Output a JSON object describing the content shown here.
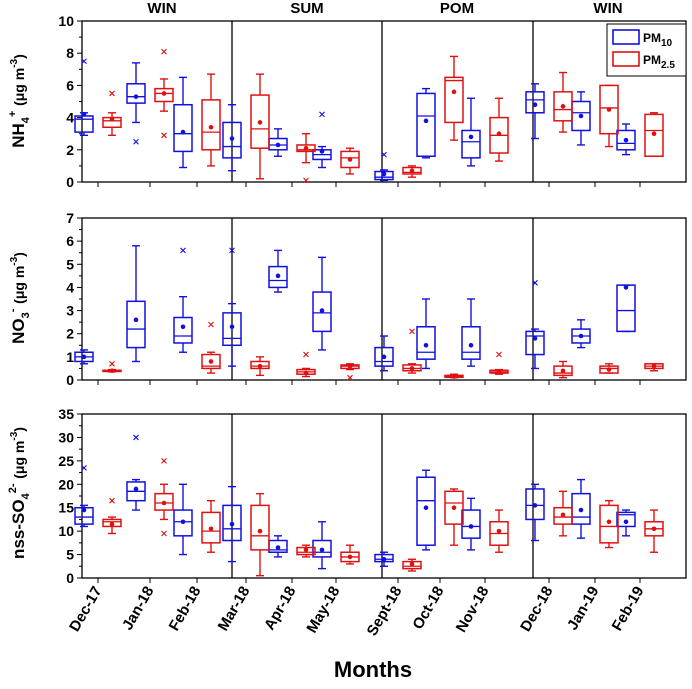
{
  "chart_data": [
    {
      "type": "box",
      "panel": "nh4",
      "ylabel": {
        "main": "NH",
        "sub": "4",
        "sup": "+",
        "unit": "(μg m",
        "unit_sup": "-3",
        "close": ")"
      },
      "ylim": [
        0,
        10
      ],
      "yticks": [
        "0",
        "2",
        "4",
        "6",
        "8",
        "10"
      ],
      "series": {
        "PM10": [
          {
            "category": "Dec-17",
            "min": 2.9,
            "q1": 3.1,
            "median": 3.9,
            "q3": 4.1,
            "max": 4.3,
            "mean": 4.2,
            "outliers": [
              7.5
            ]
          },
          {
            "category": "Jan-18",
            "min": 3.7,
            "q1": 4.9,
            "median": 5.3,
            "q3": 6.1,
            "max": 7.4,
            "mean": 5.3,
            "outliers": [
              2.5
            ]
          },
          {
            "category": "Feb-18",
            "min": 0.9,
            "q1": 1.9,
            "median": 3.0,
            "q3": 4.8,
            "max": 6.5,
            "mean": 3.1,
            "outliers": []
          },
          {
            "category": "Mar-18",
            "min": 0.7,
            "q1": 1.5,
            "median": 2.2,
            "q3": 3.7,
            "max": 4.8,
            "mean": 2.7,
            "outliers": []
          },
          {
            "category": "Apr-18",
            "min": 1.6,
            "q1": 2.0,
            "median": 2.3,
            "q3": 2.7,
            "max": 3.3,
            "mean": 2.3,
            "outliers": []
          },
          {
            "category": "May-18",
            "min": 0.9,
            "q1": 1.4,
            "median": 1.7,
            "q3": 2.0,
            "max": 2.2,
            "mean": 1.9,
            "outliers": [
              4.2
            ]
          },
          {
            "category": "Sept-18",
            "min": 0.1,
            "q1": 0.15,
            "median": 0.3,
            "q3": 0.65,
            "max": 0.75,
            "mean": 0.5,
            "outliers": [
              1.7
            ]
          },
          {
            "category": "Oct-18",
            "min": 1.5,
            "q1": 1.6,
            "median": 4.1,
            "q3": 5.5,
            "max": 5.8,
            "mean": 3.8,
            "outliers": []
          },
          {
            "category": "Nov-18",
            "min": 1.0,
            "q1": 1.5,
            "median": 2.5,
            "q3": 3.2,
            "max": 5.2,
            "mean": 2.8,
            "outliers": []
          },
          {
            "category": "Dec-18",
            "min": 2.7,
            "q1": 4.3,
            "median": 5.1,
            "q3": 5.6,
            "max": 6.1,
            "mean": 4.8,
            "outliers": []
          },
          {
            "category": "Jan-19",
            "min": 2.3,
            "q1": 3.2,
            "median": 4.3,
            "q3": 5.0,
            "max": 5.6,
            "mean": 4.1,
            "outliers": []
          },
          {
            "category": "Feb-19",
            "min": 1.7,
            "q1": 2.0,
            "median": 2.4,
            "q3": 3.2,
            "max": 3.6,
            "mean": 2.6,
            "outliers": []
          }
        ],
        "PM2.5": [
          {
            "category": "Dec-17",
            "min": 2.9,
            "q1": 3.4,
            "median": 3.8,
            "q3": 4.0,
            "max": 4.3,
            "mean": 3.9,
            "outliers": [
              5.5
            ]
          },
          {
            "category": "Jan-18",
            "min": 4.4,
            "q1": 5.0,
            "median": 5.5,
            "q3": 5.8,
            "max": 6.4,
            "mean": 5.5,
            "outliers": [
              8.1,
              2.9
            ]
          },
          {
            "category": "Feb-18",
            "min": 1.0,
            "q1": 2.0,
            "median": 3.1,
            "q3": 5.1,
            "max": 6.7,
            "mean": 3.4,
            "outliers": []
          },
          {
            "category": "Mar-18",
            "min": 0.2,
            "q1": 2.1,
            "median": 3.3,
            "q3": 5.4,
            "max": 6.7,
            "mean": 3.7,
            "outliers": []
          },
          {
            "category": "Apr-18",
            "min": 1.2,
            "q1": 1.9,
            "median": 2.0,
            "q3": 2.3,
            "max": 3.0,
            "mean": 2.1,
            "outliers": [
              0.1
            ]
          },
          {
            "category": "May-18",
            "min": 0.5,
            "q1": 0.9,
            "median": 1.5,
            "q3": 1.9,
            "max": 2.1,
            "mean": 1.4,
            "outliers": []
          },
          {
            "category": "Sept-18",
            "min": 0.3,
            "q1": 0.5,
            "median": 0.6,
            "q3": 0.9,
            "max": 1.0,
            "mean": 0.7,
            "outliers": []
          },
          {
            "category": "Oct-18",
            "min": 2.6,
            "q1": 3.7,
            "median": 6.3,
            "q3": 6.5,
            "max": 7.8,
            "mean": 5.6,
            "outliers": []
          },
          {
            "category": "Nov-18",
            "min": 1.3,
            "q1": 1.8,
            "median": 2.9,
            "q3": 4.0,
            "max": 5.2,
            "mean": 3.0,
            "outliers": []
          },
          {
            "category": "Dec-18",
            "min": 3.1,
            "q1": 3.8,
            "median": 4.5,
            "q3": 5.6,
            "max": 6.8,
            "mean": 4.7,
            "outliers": []
          },
          {
            "category": "Jan-19",
            "min": 2.2,
            "q1": 3.0,
            "median": 4.6,
            "q3": 6.0,
            "max": 6.0,
            "mean": 4.5,
            "outliers": []
          },
          {
            "category": "Feb-19",
            "min": 1.6,
            "q1": 1.6,
            "median": 3.2,
            "q3": 4.2,
            "max": 4.3,
            "mean": 3.0,
            "outliers": []
          }
        ]
      }
    },
    {
      "type": "box",
      "panel": "no3",
      "ylabel": {
        "main": "NO",
        "sub": "3",
        "sup": "-",
        "unit": "(μg m",
        "unit_sup": "-3",
        "close": ")"
      },
      "ylim": [
        0,
        7
      ],
      "yticks": [
        "0",
        "1",
        "2",
        "3",
        "4",
        "5",
        "6",
        "7"
      ],
      "series": {
        "PM10": [
          {
            "category": "Dec-17",
            "min": 0.7,
            "q1": 0.8,
            "median": 1.0,
            "q3": 1.2,
            "max": 1.3,
            "mean": 1.0,
            "outliers": []
          },
          {
            "category": "Jan-18",
            "min": 0.8,
            "q1": 1.4,
            "median": 2.2,
            "q3": 3.4,
            "max": 5.8,
            "mean": 2.6,
            "outliers": []
          },
          {
            "category": "Feb-18",
            "min": 1.2,
            "q1": 1.6,
            "median": 1.9,
            "q3": 2.7,
            "max": 3.6,
            "mean": 2.3,
            "outliers": [
              5.6
            ]
          },
          {
            "category": "Mar-18",
            "min": 0.6,
            "q1": 1.5,
            "median": 1.8,
            "q3": 2.9,
            "max": 3.3,
            "mean": 2.3,
            "outliers": [
              5.6
            ]
          },
          {
            "category": "Apr-18",
            "min": 3.8,
            "q1": 4.0,
            "median": 4.3,
            "q3": 4.9,
            "max": 5.6,
            "mean": 4.5,
            "outliers": []
          },
          {
            "category": "May-18",
            "min": 1.3,
            "q1": 2.1,
            "median": 2.9,
            "q3": 3.8,
            "max": 5.3,
            "mean": 3.0,
            "outliers": []
          },
          {
            "category": "Sept-18",
            "min": 0.4,
            "q1": 0.6,
            "median": 0.8,
            "q3": 1.4,
            "max": 1.9,
            "mean": 1.0,
            "outliers": []
          },
          {
            "category": "Oct-18",
            "min": 0.5,
            "q1": 0.9,
            "median": 1.2,
            "q3": 2.3,
            "max": 3.5,
            "mean": 1.5,
            "outliers": []
          },
          {
            "category": "Nov-18",
            "min": 0.6,
            "q1": 0.9,
            "median": 1.2,
            "q3": 2.3,
            "max": 3.5,
            "mean": 1.5,
            "outliers": []
          },
          {
            "category": "Dec-18",
            "min": 0.5,
            "q1": 1.1,
            "median": 1.9,
            "q3": 2.1,
            "max": 2.2,
            "mean": 1.8,
            "outliers": [
              4.2
            ]
          },
          {
            "category": "Jan-19",
            "min": 1.4,
            "q1": 1.6,
            "median": 1.9,
            "q3": 2.2,
            "max": 2.6,
            "mean": 1.9,
            "outliers": []
          },
          {
            "category": "Feb-19",
            "min": 2.1,
            "q1": 2.1,
            "median": 3.0,
            "q3": 4.1,
            "max": 4.1,
            "mean": 4.0,
            "outliers": []
          }
        ],
        "PM2.5": [
          {
            "category": "Dec-17",
            "min": 0.35,
            "q1": 0.37,
            "median": 0.4,
            "q3": 0.42,
            "max": 0.45,
            "mean": 0.4,
            "outliers": [
              0.7
            ]
          },
          {
            "category": "Feb-18",
            "min": 0.3,
            "q1": 0.5,
            "median": 0.6,
            "q3": 1.1,
            "max": 1.2,
            "mean": 0.8,
            "outliers": [
              2.4
            ]
          },
          {
            "category": "Mar-18",
            "min": 0.2,
            "q1": 0.5,
            "median": 0.6,
            "q3": 0.8,
            "max": 1.0,
            "mean": 0.6,
            "outliers": []
          },
          {
            "category": "Apr-18",
            "min": 0.15,
            "q1": 0.25,
            "median": 0.35,
            "q3": 0.45,
            "max": 0.5,
            "mean": 0.3,
            "outliers": [
              1.1
            ]
          },
          {
            "category": "May-18",
            "min": 0.45,
            "q1": 0.5,
            "median": 0.6,
            "q3": 0.65,
            "max": 0.7,
            "mean": 0.6,
            "outliers": [
              0.1
            ]
          },
          {
            "category": "Sept-18",
            "min": 0.3,
            "q1": 0.4,
            "median": 0.5,
            "q3": 0.65,
            "max": 0.7,
            "mean": 0.5,
            "outliers": [
              2.1
            ]
          },
          {
            "category": "Oct-18",
            "min": 0.1,
            "q1": 0.12,
            "median": 0.15,
            "q3": 0.2,
            "max": 0.25,
            "mean": 0.15,
            "outliers": []
          },
          {
            "category": "Nov-18",
            "min": 0.25,
            "q1": 0.3,
            "median": 0.35,
            "q3": 0.42,
            "max": 0.45,
            "mean": 0.35,
            "outliers": [
              1.1
            ]
          },
          {
            "category": "Dec-18",
            "min": 0.1,
            "q1": 0.2,
            "median": 0.3,
            "q3": 0.6,
            "max": 0.8,
            "mean": 0.4,
            "outliers": []
          },
          {
            "category": "Jan-19",
            "min": 0.3,
            "q1": 0.3,
            "median": 0.5,
            "q3": 0.6,
            "max": 0.7,
            "mean": 0.45,
            "outliers": []
          },
          {
            "category": "Feb-19",
            "min": 0.4,
            "q1": 0.5,
            "median": 0.6,
            "q3": 0.7,
            "max": 0.7,
            "mean": 0.6,
            "outliers": []
          }
        ]
      }
    },
    {
      "type": "box",
      "panel": "so4",
      "ylabel": {
        "main": "nss-SO",
        "sub": "4",
        "sup": "2-",
        "unit": "(μg m",
        "unit_sup": "-3",
        "close": ")"
      },
      "ylim": [
        0,
        35
      ],
      "yticks": [
        "0",
        "5",
        "10",
        "15",
        "20",
        "25",
        "30",
        "35"
      ],
      "series": {
        "PM10": [
          {
            "category": "Dec-17",
            "min": 11.0,
            "q1": 11.5,
            "median": 13.0,
            "q3": 15.0,
            "max": 15.5,
            "mean": 14.5,
            "outliers": [
              23.5
            ]
          },
          {
            "category": "Jan-18",
            "min": 14.5,
            "q1": 16.5,
            "median": 18.5,
            "q3": 20.5,
            "max": 21.0,
            "mean": 19.0,
            "outliers": [
              30.0
            ]
          },
          {
            "category": "Feb-18",
            "min": 5.0,
            "q1": 9.0,
            "median": 12.0,
            "q3": 14.5,
            "max": 20.0,
            "mean": 12.0,
            "outliers": []
          },
          {
            "category": "Mar-18",
            "min": 3.5,
            "q1": 8.0,
            "median": 10.5,
            "q3": 15.5,
            "max": 19.5,
            "mean": 11.5,
            "outliers": []
          },
          {
            "category": "Apr-18",
            "min": 4.5,
            "q1": 5.5,
            "median": 6.0,
            "q3": 8.0,
            "max": 9.0,
            "mean": 6.5,
            "outliers": []
          },
          {
            "category": "May-18",
            "min": 2.0,
            "q1": 4.5,
            "median": 5.5,
            "q3": 8.0,
            "max": 12.0,
            "mean": 6.0,
            "outliers": []
          },
          {
            "category": "Sept-18",
            "min": 2.5,
            "q1": 3.5,
            "median": 4.0,
            "q3": 5.0,
            "max": 5.5,
            "mean": 4.0,
            "outliers": []
          },
          {
            "category": "Oct-18",
            "min": 6.0,
            "q1": 7.0,
            "median": 16.5,
            "q3": 21.5,
            "max": 23.0,
            "mean": 15.0,
            "outliers": []
          },
          {
            "category": "Nov-18",
            "min": 6.0,
            "q1": 8.5,
            "median": 11.0,
            "q3": 14.5,
            "max": 17.0,
            "mean": 11.0,
            "outliers": []
          },
          {
            "category": "Dec-18",
            "min": 8.0,
            "q1": 12.5,
            "median": 15.5,
            "q3": 19.0,
            "max": 20.0,
            "mean": 15.5,
            "outliers": []
          },
          {
            "category": "Jan-19",
            "min": 8.5,
            "q1": 11.5,
            "median": 13.0,
            "q3": 18.0,
            "max": 21.0,
            "mean": 14.5,
            "outliers": []
          },
          {
            "category": "Feb-19",
            "min": 9.0,
            "q1": 11.0,
            "median": 13.5,
            "q3": 14.0,
            "max": 14.5,
            "mean": 12.0,
            "outliers": []
          }
        ],
        "PM2.5": [
          {
            "category": "Dec-17",
            "min": 9.5,
            "q1": 11.0,
            "median": 12.0,
            "q3": 12.5,
            "max": 13.0,
            "mean": 11.5,
            "outliers": [
              16.5
            ]
          },
          {
            "category": "Jan-18",
            "min": 12.5,
            "q1": 14.5,
            "median": 16.0,
            "q3": 18.0,
            "max": 20.0,
            "mean": 16.0,
            "outliers": [
              25.0,
              9.5
            ]
          },
          {
            "category": "Feb-18",
            "min": 5.5,
            "q1": 7.5,
            "median": 10.0,
            "q3": 14.0,
            "max": 16.5,
            "mean": 10.5,
            "outliers": []
          },
          {
            "category": "Mar-18",
            "min": 0.5,
            "q1": 6.0,
            "median": 9.0,
            "q3": 15.5,
            "max": 18.0,
            "mean": 10.0,
            "outliers": []
          },
          {
            "category": "Apr-18",
            "min": 4.5,
            "q1": 5.0,
            "median": 5.5,
            "q3": 6.5,
            "max": 7.0,
            "mean": 6.0,
            "outliers": []
          },
          {
            "category": "May-18",
            "min": 3.0,
            "q1": 3.5,
            "median": 4.5,
            "q3": 5.5,
            "max": 7.0,
            "mean": 4.5,
            "outliers": []
          },
          {
            "category": "Sept-18",
            "min": 1.5,
            "q1": 2.0,
            "median": 2.5,
            "q3": 3.5,
            "max": 4.0,
            "mean": 3.0,
            "outliers": []
          },
          {
            "category": "Oct-18",
            "min": 7.0,
            "q1": 11.5,
            "median": 16.0,
            "q3": 18.5,
            "max": 19.0,
            "mean": 15.0,
            "outliers": []
          },
          {
            "category": "Nov-18",
            "min": 5.5,
            "q1": 7.0,
            "median": 9.5,
            "q3": 12.0,
            "max": 14.5,
            "mean": 10.0,
            "outliers": []
          },
          {
            "category": "Dec-18",
            "min": 9.0,
            "q1": 11.5,
            "median": 13.0,
            "q3": 15.0,
            "max": 18.5,
            "mean": 13.5,
            "outliers": []
          },
          {
            "category": "Jan-19",
            "min": 6.5,
            "q1": 7.5,
            "median": 11.0,
            "q3": 15.5,
            "max": 16.5,
            "mean": 12.0,
            "outliers": []
          },
          {
            "category": "Feb-19",
            "min": 5.5,
            "q1": 9.0,
            "median": 10.5,
            "q3": 12.0,
            "max": 14.5,
            "mean": 10.5,
            "outliers": []
          }
        ]
      }
    }
  ],
  "categories": [
    "Dec-17",
    "Jan-18",
    "Feb-18",
    "Mar-18",
    "Apr-18",
    "May-18",
    "Sept-18",
    "Oct-18",
    "Nov-18",
    "Dec-18",
    "Jan-19",
    "Feb-19"
  ],
  "seasons": [
    "WIN",
    "SUM",
    "POM",
    "WIN"
  ],
  "xlabel": "Months",
  "legend": {
    "pm10": "PM",
    "pm10_sub": "10",
    "pm25": "PM",
    "pm25_sub": "2.5"
  },
  "colors": {
    "pm10": "#1010e0",
    "pm25": "#e01010",
    "axis": "#000000"
  }
}
